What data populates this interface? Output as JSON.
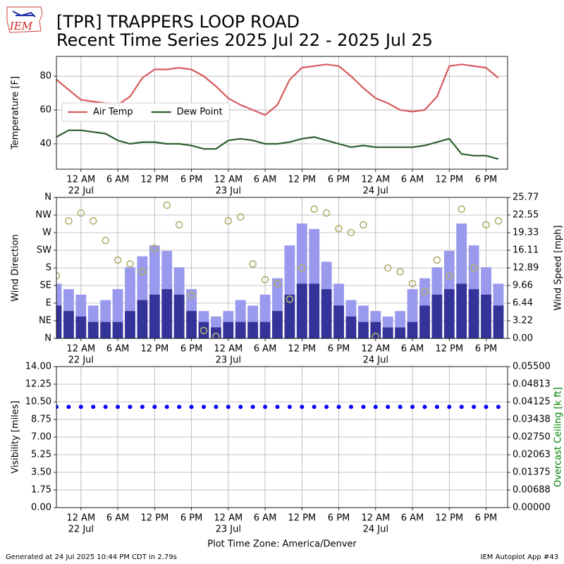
{
  "logo_text": "IEM",
  "title": "[TPR] TRAPPERS LOOP ROAD",
  "subtitle": "Recent Time Series 2025 Jul 22 - 2025 Jul 25",
  "footer_left": "Generated at 24 Jul 2025 10:44 PM CDT in 2.79s",
  "footer_right": "IEM Autoplot App #43",
  "chart_data": [
    {
      "type": "line",
      "ylabel": "Temperature [F]",
      "x": [
        "2025-07-21 20:00",
        "2025-07-21 22:00",
        "2025-07-22 00:00",
        "2025-07-22 02:00",
        "2025-07-22 04:00",
        "2025-07-22 06:00",
        "2025-07-22 08:00",
        "2025-07-22 10:00",
        "2025-07-22 12:00",
        "2025-07-22 14:00",
        "2025-07-22 16:00",
        "2025-07-22 18:00",
        "2025-07-22 20:00",
        "2025-07-22 22:00",
        "2025-07-23 00:00",
        "2025-07-23 02:00",
        "2025-07-23 04:00",
        "2025-07-23 06:00",
        "2025-07-23 08:00",
        "2025-07-23 10:00",
        "2025-07-23 12:00",
        "2025-07-23 14:00",
        "2025-07-23 16:00",
        "2025-07-23 18:00",
        "2025-07-23 20:00",
        "2025-07-23 22:00",
        "2025-07-24 00:00",
        "2025-07-24 02:00",
        "2025-07-24 04:00",
        "2025-07-24 06:00",
        "2025-07-24 08:00",
        "2025-07-24 10:00",
        "2025-07-24 12:00",
        "2025-07-24 14:00",
        "2025-07-24 16:00",
        "2025-07-24 18:00",
        "2025-07-24 20:00"
      ],
      "xlim": [
        "2025-07-21 20:00",
        "2025-07-24 21:30"
      ],
      "xticks": [
        {
          "value": "2025-07-22 00:00",
          "label": "12 AM",
          "date": "22 Jul"
        },
        {
          "value": "2025-07-22 06:00",
          "label": "6 AM"
        },
        {
          "value": "2025-07-22 12:00",
          "label": "12 PM"
        },
        {
          "value": "2025-07-22 18:00",
          "label": "6 PM"
        },
        {
          "value": "2025-07-23 00:00",
          "label": "12 AM",
          "date": "23 Jul"
        },
        {
          "value": "2025-07-23 06:00",
          "label": "6 AM"
        },
        {
          "value": "2025-07-23 12:00",
          "label": "12 PM"
        },
        {
          "value": "2025-07-23 18:00",
          "label": "6 PM"
        },
        {
          "value": "2025-07-24 00:00",
          "label": "12 AM",
          "date": "24 Jul"
        },
        {
          "value": "2025-07-24 06:00",
          "label": "6 AM"
        },
        {
          "value": "2025-07-24 12:00",
          "label": "12 PM"
        },
        {
          "value": "2025-07-24 18:00",
          "label": "6 PM"
        }
      ],
      "ylim": [
        25,
        91.7
      ],
      "yticks": [
        40,
        60,
        80
      ],
      "grid": true,
      "legend": "center left",
      "series": [
        {
          "name": "Air Temp",
          "color": "#d65a5f",
          "values": [
            78,
            72,
            66,
            65,
            64,
            63,
            68,
            79,
            84,
            84,
            85,
            84,
            80,
            74,
            67,
            63,
            60,
            57,
            63,
            78,
            85,
            86,
            87,
            86,
            80,
            73,
            67,
            64,
            60,
            59,
            60,
            68,
            86,
            87,
            86,
            85,
            79
          ]
        },
        {
          "name": "Dew Point",
          "color": "#2e5e2e",
          "values": [
            44,
            48,
            48,
            47,
            46,
            42,
            40,
            41,
            41,
            40,
            40,
            39,
            37,
            37,
            42,
            43,
            42,
            40,
            40,
            41,
            43,
            44,
            42,
            40,
            38,
            39,
            38,
            38,
            38,
            38,
            39,
            41,
            43,
            34,
            33,
            33,
            31
          ]
        }
      ]
    },
    {
      "type": "bar",
      "ylabel": "Wind Direction",
      "y2label": "Wind Speed [mph]",
      "x": [
        "2025-07-21 20:00",
        "2025-07-21 22:00",
        "2025-07-22 00:00",
        "2025-07-22 02:00",
        "2025-07-22 04:00",
        "2025-07-22 06:00",
        "2025-07-22 08:00",
        "2025-07-22 10:00",
        "2025-07-22 12:00",
        "2025-07-22 14:00",
        "2025-07-22 16:00",
        "2025-07-22 18:00",
        "2025-07-22 20:00",
        "2025-07-22 22:00",
        "2025-07-23 00:00",
        "2025-07-23 02:00",
        "2025-07-23 04:00",
        "2025-07-23 06:00",
        "2025-07-23 08:00",
        "2025-07-23 10:00",
        "2025-07-23 12:00",
        "2025-07-23 14:00",
        "2025-07-23 16:00",
        "2025-07-23 18:00",
        "2025-07-23 20:00",
        "2025-07-23 22:00",
        "2025-07-24 00:00",
        "2025-07-24 02:00",
        "2025-07-24 04:00",
        "2025-07-24 06:00",
        "2025-07-24 08:00",
        "2025-07-24 10:00",
        "2025-07-24 12:00",
        "2025-07-24 14:00",
        "2025-07-24 16:00",
        "2025-07-24 18:00",
        "2025-07-24 20:00"
      ],
      "xlim": [
        "2025-07-21 20:00",
        "2025-07-24 21:30"
      ],
      "xticks": [
        {
          "value": "2025-07-22 00:00",
          "label": "12 AM",
          "date": "22 Jul"
        },
        {
          "value": "2025-07-22 06:00",
          "label": "6 AM"
        },
        {
          "value": "2025-07-22 12:00",
          "label": "12 PM"
        },
        {
          "value": "2025-07-22 18:00",
          "label": "6 PM"
        },
        {
          "value": "2025-07-23 00:00",
          "label": "12 AM",
          "date": "23 Jul"
        },
        {
          "value": "2025-07-23 06:00",
          "label": "6 AM"
        },
        {
          "value": "2025-07-23 12:00",
          "label": "12 PM"
        },
        {
          "value": "2025-07-23 18:00",
          "label": "6 PM"
        },
        {
          "value": "2025-07-24 00:00",
          "label": "12 AM",
          "date": "24 Jul"
        },
        {
          "value": "2025-07-24 06:00",
          "label": "6 AM"
        },
        {
          "value": "2025-07-24 12:00",
          "label": "12 PM"
        },
        {
          "value": "2025-07-24 18:00",
          "label": "6 PM"
        }
      ],
      "ylim": [
        0,
        360
      ],
      "yticks": [
        {
          "value": 0,
          "label": "N"
        },
        {
          "value": 45,
          "label": "NE"
        },
        {
          "value": 90,
          "label": "E"
        },
        {
          "value": 135,
          "label": "SE"
        },
        {
          "value": 180,
          "label": "S"
        },
        {
          "value": 225,
          "label": "SW"
        },
        {
          "value": 270,
          "label": "W"
        },
        {
          "value": 315,
          "label": "NW"
        },
        {
          "value": 360,
          "label": "N"
        }
      ],
      "y2lim": [
        0,
        25.77
      ],
      "y2ticks": [
        {
          "value": 0,
          "label": "0.00"
        },
        3.22,
        6.44,
        9.66,
        12.89,
        16.11,
        19.33,
        22.55,
        25.77
      ],
      "grid": true,
      "series": [
        {
          "type": "bar",
          "axis": "y2",
          "color": "#9999ee",
          "values": [
            10,
            9,
            8,
            6,
            7,
            9,
            13,
            15,
            17,
            16,
            13,
            9,
            5,
            4,
            5,
            7,
            6,
            8,
            11,
            17,
            21,
            20,
            14,
            10,
            7,
            6,
            5,
            4,
            5,
            9,
            11,
            13,
            16,
            21,
            17,
            13,
            10
          ]
        },
        {
          "type": "bar",
          "axis": "y2",
          "color": "#333399",
          "values": [
            6,
            5,
            4,
            3,
            3,
            3,
            5,
            7,
            8,
            9,
            8,
            5,
            3,
            2,
            3,
            3,
            3,
            3,
            5,
            8,
            10,
            10,
            9,
            6,
            4,
            3,
            3,
            2,
            2,
            3,
            6,
            8,
            9,
            10,
            9,
            8,
            6
          ]
        },
        {
          "type": "scatter",
          "color": "#b0b070",
          "values": [
            160,
            300,
            320,
            300,
            250,
            200,
            190,
            170,
            230,
            340,
            290,
            110,
            20,
            5,
            300,
            310,
            190,
            150,
            140,
            100,
            180,
            330,
            320,
            280,
            270,
            290,
            5,
            180,
            170,
            140,
            120,
            200,
            160,
            330,
            180,
            290,
            300
          ]
        }
      ]
    },
    {
      "type": "scatter",
      "ylabel": "Visibility [miles]",
      "y2label": "Overcast Ceiling [k ft]",
      "y2color": "#008000",
      "xlabel": "Plot Time Zone: America/Denver",
      "x": [
        "2025-07-21 20:00",
        "2025-07-21 22:00",
        "2025-07-22 00:00",
        "2025-07-22 02:00",
        "2025-07-22 04:00",
        "2025-07-22 06:00",
        "2025-07-22 08:00",
        "2025-07-22 10:00",
        "2025-07-22 12:00",
        "2025-07-22 14:00",
        "2025-07-22 16:00",
        "2025-07-22 18:00",
        "2025-07-22 20:00",
        "2025-07-22 22:00",
        "2025-07-23 00:00",
        "2025-07-23 02:00",
        "2025-07-23 04:00",
        "2025-07-23 06:00",
        "2025-07-23 08:00",
        "2025-07-23 10:00",
        "2025-07-23 12:00",
        "2025-07-23 14:00",
        "2025-07-23 16:00",
        "2025-07-23 18:00",
        "2025-07-23 20:00",
        "2025-07-23 22:00",
        "2025-07-24 00:00",
        "2025-07-24 02:00",
        "2025-07-24 04:00",
        "2025-07-24 06:00",
        "2025-07-24 08:00",
        "2025-07-24 10:00",
        "2025-07-24 12:00",
        "2025-07-24 14:00",
        "2025-07-24 16:00",
        "2025-07-24 18:00",
        "2025-07-24 20:00"
      ],
      "xlim": [
        "2025-07-21 20:00",
        "2025-07-24 21:30"
      ],
      "xticks": [
        {
          "value": "2025-07-22 00:00",
          "label": "12 AM",
          "date": "22 Jul"
        },
        {
          "value": "2025-07-22 06:00",
          "label": "6 AM"
        },
        {
          "value": "2025-07-22 12:00",
          "label": "12 PM"
        },
        {
          "value": "2025-07-22 18:00",
          "label": "6 PM"
        },
        {
          "value": "2025-07-23 00:00",
          "label": "12 AM",
          "date": "23 Jul"
        },
        {
          "value": "2025-07-23 06:00",
          "label": "6 AM"
        },
        {
          "value": "2025-07-23 12:00",
          "label": "12 PM"
        },
        {
          "value": "2025-07-23 18:00",
          "label": "6 PM"
        },
        {
          "value": "2025-07-24 00:00",
          "label": "12 AM",
          "date": "24 Jul"
        },
        {
          "value": "2025-07-24 06:00",
          "label": "6 AM"
        },
        {
          "value": "2025-07-24 12:00",
          "label": "12 PM"
        },
        {
          "value": "2025-07-24 18:00",
          "label": "6 PM"
        }
      ],
      "ylim": [
        0,
        14
      ],
      "yticks": [
        {
          "value": 0,
          "label": "0.00"
        },
        1.75,
        {
          "value": 3.5,
          "label": "3.50"
        },
        5.25,
        {
          "value": 7,
          "label": "7.00"
        },
        8.75,
        {
          "value": 10.5,
          "label": "10.50"
        },
        12.25,
        {
          "value": 14,
          "label": "14.00"
        }
      ],
      "y2lim": [
        0,
        0.055
      ],
      "y2ticks": [
        {
          "value": 0,
          "label": "0.00000"
        },
        0.00688,
        0.01375,
        0.02063,
        {
          "value": 0.0275,
          "label": "0.02750"
        },
        0.03438,
        0.04125,
        0.04813,
        {
          "value": 0.055,
          "label": "0.05500"
        }
      ],
      "grid": true,
      "series": [
        {
          "type": "scatter",
          "color": "#0000ff",
          "values": [
            10,
            10,
            10,
            10,
            10,
            10,
            10,
            10,
            10,
            10,
            10,
            10,
            10,
            10,
            10,
            10,
            10,
            10,
            10,
            10,
            10,
            10,
            10,
            10,
            10,
            10,
            10,
            10,
            10,
            10,
            10,
            10,
            10,
            10,
            10,
            10,
            10
          ]
        }
      ]
    }
  ]
}
